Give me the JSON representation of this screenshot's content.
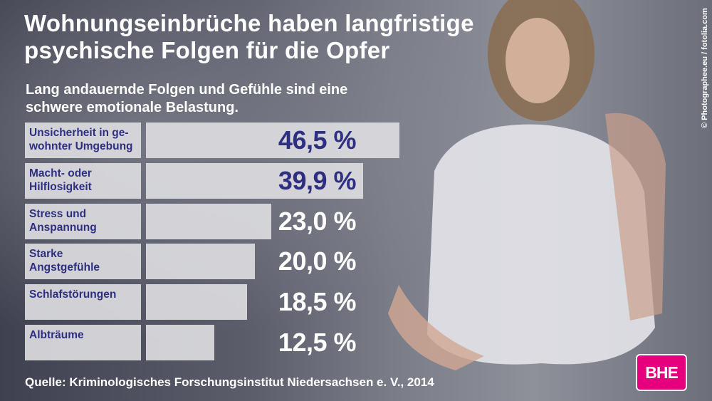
{
  "title": "Wohnungseinbrüche haben langfristige\npsychische Folgen für die Opfer",
  "chart_data": {
    "type": "bar",
    "orientation": "horizontal",
    "subtitle": "Lang andauernde Folgen und Gefühle sind eine\nschwere emotionale Belastung.",
    "categories": [
      "Unsicherheit in ge-\nwohnter Umgebung",
      "Macht- oder\nHilflosigkeit",
      "Stress und\nAnspannung",
      "Starke\nAngstgefühle",
      "Schlafstörungen",
      "Albträume"
    ],
    "values": [
      46.5,
      39.9,
      23.0,
      20.0,
      18.5,
      12.5
    ],
    "value_labels": [
      "46,5 %",
      "39,9 %",
      "23,0 %",
      "20,0 %",
      "18,5 %",
      "12,5 %"
    ],
    "color": "#dcdce0"
  },
  "source": "Quelle: Kriminologisches Forschungsinstitut Niedersachsen e. V., 2014",
  "credit": "© Photographee.eu / fotolia.com",
  "logo": "BHE"
}
